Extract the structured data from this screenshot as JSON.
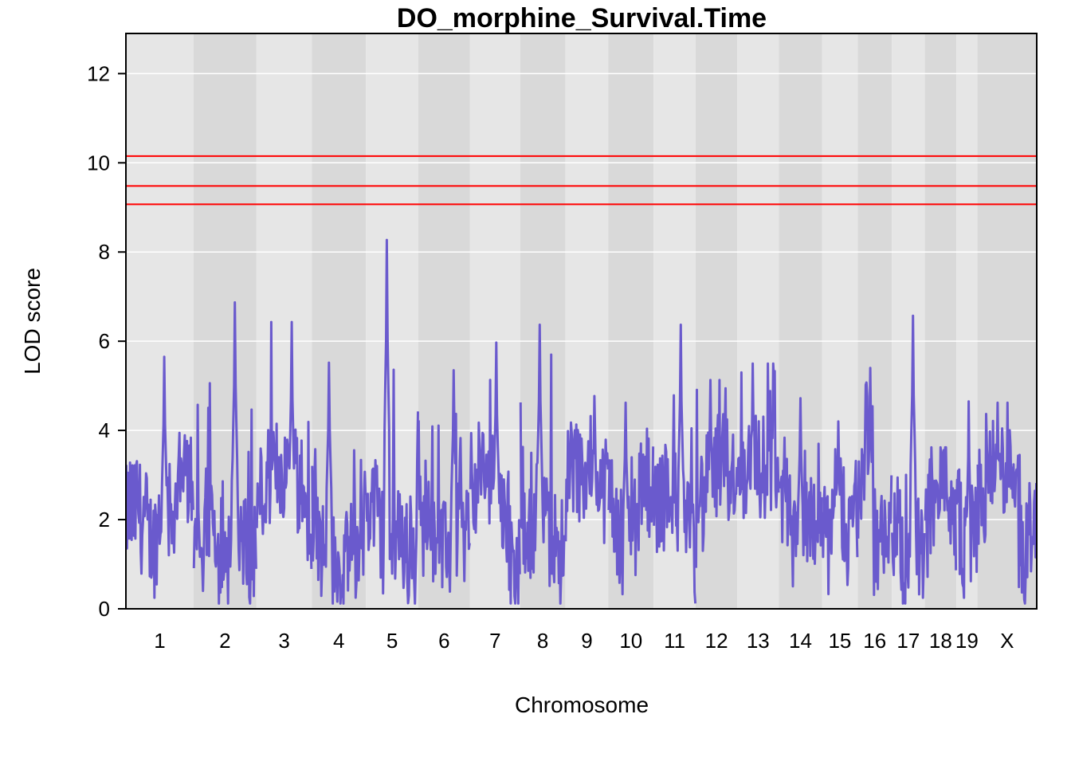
{
  "chart_data": {
    "type": "line",
    "title": "DO_morphine_Survival.Time",
    "xlabel": "Chromosome",
    "ylabel": "LOD score",
    "ylim": [
      0,
      12.9
    ],
    "y_ticks": [
      0,
      2,
      4,
      6,
      8,
      10,
      12
    ],
    "grid": true,
    "background_bands": [
      "#e6e6e6",
      "#d9d9d9"
    ],
    "gridline_color": "#ffffff",
    "line_color": "#6a5acd",
    "threshold_color": "#ff0000",
    "thresholds": [
      10.15,
      9.48,
      9.07
    ],
    "chromosomes": [
      {
        "label": "1",
        "start": 0.0,
        "end": 195.5,
        "peak": 5.65
      },
      {
        "label": "2",
        "start": 195.5,
        "end": 377.5,
        "peak": 6.87
      },
      {
        "label": "3",
        "start": 377.5,
        "end": 537.5,
        "peak": 6.43
      },
      {
        "label": "4",
        "start": 537.5,
        "end": 694.0,
        "peak": 5.52
      },
      {
        "label": "5",
        "start": 694.0,
        "end": 845.5,
        "peak": 8.27
      },
      {
        "label": "6",
        "start": 845.5,
        "end": 995.0,
        "peak": 5.35
      },
      {
        "label": "7",
        "start": 995.0,
        "end": 1140.0,
        "peak": 5.97
      },
      {
        "label": "8",
        "start": 1140.0,
        "end": 1270.5,
        "peak": 6.37
      },
      {
        "label": "9",
        "start": 1270.5,
        "end": 1395.0,
        "peak": 4.77
      },
      {
        "label": "10",
        "start": 1395.0,
        "end": 1525.5,
        "peak": 4.62
      },
      {
        "label": "11",
        "start": 1525.5,
        "end": 1647.5,
        "peak": 6.37
      },
      {
        "label": "12",
        "start": 1647.5,
        "end": 1767.5,
        "peak": 5.13
      },
      {
        "label": "13",
        "start": 1767.5,
        "end": 1888.0,
        "peak": 5.5
      },
      {
        "label": "14",
        "start": 1888.0,
        "end": 2012.5,
        "peak": 4.72
      },
      {
        "label": "15",
        "start": 2012.5,
        "end": 2116.0,
        "peak": 4.2
      },
      {
        "label": "16",
        "start": 2116.0,
        "end": 2214.5,
        "peak": 5.4
      },
      {
        "label": "17",
        "start": 2214.5,
        "end": 2310.0,
        "peak": 6.57
      },
      {
        "label": "18",
        "start": 2310.0,
        "end": 2401.0,
        "peak": 3.62
      },
      {
        "label": "19",
        "start": 2401.0,
        "end": 2462.0,
        "peak": 4.65
      },
      {
        "label": "X",
        "start": 2462.0,
        "end": 2633.5,
        "peak": 4.62
      }
    ],
    "x_range": [
      0,
      2633.5
    ],
    "series": [
      {
        "values_note_x": [],
        "y": []
      }
    ]
  }
}
